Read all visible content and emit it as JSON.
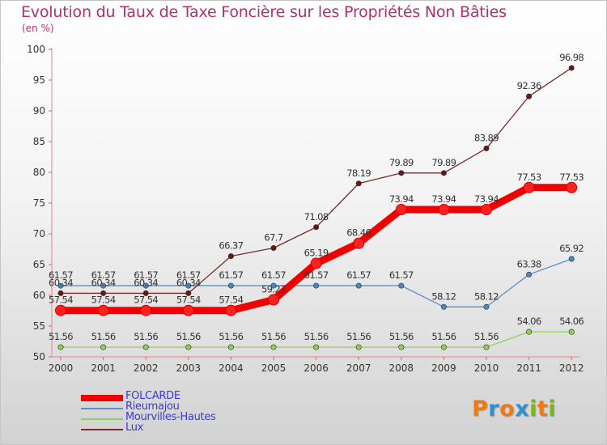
{
  "header": {
    "title": "Evolution du Taux de Taxe Foncière sur les Propriétés Non Bâties",
    "subtitle": "(en %)"
  },
  "logo": {
    "text": "Proxiti",
    "letters": [
      "P",
      "r",
      "o",
      "x",
      "i",
      "t",
      "i"
    ],
    "colors": [
      "#f07a12",
      "#2f8fd0",
      "#f07a12",
      "#2f8fd0",
      "#7bb51e",
      "#f07a12",
      "#7bb51e"
    ]
  },
  "chart_data": {
    "type": "line",
    "title": "Evolution du Taux de Taxe Foncière sur les Propriétés Non Bâties",
    "subtitle": "(en %)",
    "xlabel": "",
    "ylabel": "",
    "ylim": [
      50,
      100
    ],
    "yticks": [
      "50",
      "55",
      "60",
      "65",
      "70",
      "75",
      "80",
      "85",
      "90",
      "95",
      "100"
    ],
    "categories": [
      "2000",
      "2001",
      "2002",
      "2003",
      "2004",
      "2005",
      "2006",
      "2007",
      "2008",
      "2009",
      "2010",
      "2011",
      "2012"
    ],
    "grid": false,
    "legend_position": "bottom-left",
    "series": [
      {
        "name": "FOLCARDE",
        "color": "#f00000",
        "emphasis": true,
        "values": [
          57.54,
          57.54,
          57.54,
          57.54,
          57.54,
          59.27,
          65.19,
          68.46,
          73.94,
          73.94,
          73.94,
          77.53,
          77.53
        ],
        "labels": [
          "57.54",
          "57.54",
          "57.54",
          "57.54",
          "57.54",
          "59.27",
          "65.19",
          "68.46",
          "73.94",
          "73.94",
          "73.94",
          "77.53",
          "77.53"
        ]
      },
      {
        "name": "Rieumajou",
        "color": "#5a8fc0",
        "emphasis": false,
        "values": [
          61.57,
          61.57,
          61.57,
          61.57,
          61.57,
          61.57,
          61.57,
          61.57,
          61.57,
          58.12,
          58.12,
          63.38,
          65.92
        ],
        "labels": [
          "61.57",
          "61.57",
          "61.57",
          "61.57",
          "61.57",
          "61.57",
          "61.57",
          "61.57",
          "61.57",
          "58.12",
          "58.12",
          "63.38",
          "65.92"
        ]
      },
      {
        "name": "Mourvilles-Hautes",
        "color": "#90d060",
        "emphasis": false,
        "values": [
          51.56,
          51.56,
          51.56,
          51.56,
          51.56,
          51.56,
          51.56,
          51.56,
          51.56,
          51.56,
          51.56,
          54.06,
          54.06
        ],
        "labels": [
          "51.56",
          "51.56",
          "51.56",
          "51.56",
          "51.56",
          "51.56",
          "51.56",
          "51.56",
          "51.56",
          "51.56",
          "51.56",
          "54.06",
          "54.06"
        ]
      },
      {
        "name": "Lux",
        "color": "#7a2a2a",
        "emphasis": false,
        "values": [
          60.34,
          60.34,
          60.34,
          60.34,
          66.37,
          67.7,
          71.08,
          78.19,
          79.89,
          79.89,
          83.89,
          92.36,
          96.98
        ],
        "labels": [
          "60.34",
          "60.34",
          "60.34",
          "60.34",
          "66.37",
          "67.7",
          "71.08",
          "78.19",
          "79.89",
          "79.89",
          "83.89",
          "92.36",
          "96.98"
        ]
      }
    ]
  }
}
